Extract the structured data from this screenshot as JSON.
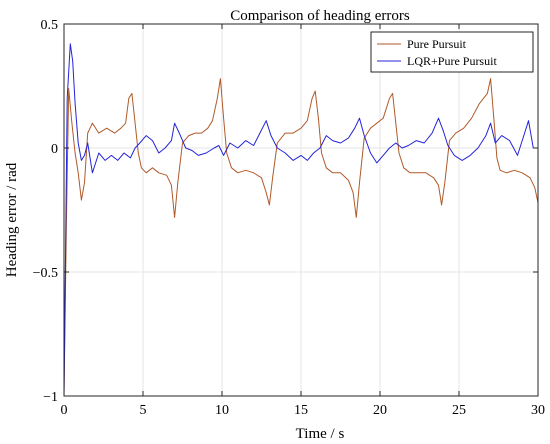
{
  "chart_data": {
    "type": "line",
    "title": "Comparison of heading errors",
    "xlabel": "Time / s",
    "ylabel": "Heading error / rad",
    "xlim": [
      0,
      30
    ],
    "ylim": [
      -1,
      0.5
    ],
    "xticks": [
      0,
      5,
      10,
      15,
      20,
      25,
      30
    ],
    "xtick_labels": [
      "0",
      "5",
      "10",
      "15",
      "20",
      "25",
      "30"
    ],
    "yticks": [
      -1,
      -0.5,
      0,
      0.5
    ],
    "ytick_labels": [
      "−1",
      "−0.5",
      "0",
      "0.5"
    ],
    "grid": true,
    "legend_position": "top-right",
    "series": [
      {
        "name": "Pure Pursuit",
        "color": "#b05a2a",
        "x": [
          0,
          0.15,
          0.3,
          0.5,
          0.7,
          0.9,
          1.1,
          1.3,
          1.5,
          1.8,
          2.2,
          2.7,
          3.2,
          3.6,
          3.9,
          4.1,
          4.3,
          4.5,
          4.7,
          4.9,
          5.2,
          5.6,
          6.0,
          6.5,
          6.8,
          7.0,
          7.2,
          7.5,
          7.9,
          8.3,
          8.7,
          9.1,
          9.4,
          9.7,
          9.9,
          10.1,
          10.3,
          10.6,
          11.0,
          11.5,
          12.0,
          12.5,
          12.8,
          13.0,
          13.2,
          13.5,
          14.0,
          14.5,
          15.0,
          15.4,
          15.7,
          15.9,
          16.1,
          16.3,
          16.6,
          17.0,
          17.5,
          18.0,
          18.3,
          18.5,
          18.7,
          19.0,
          19.4,
          19.8,
          20.2,
          20.6,
          20.8,
          21.0,
          21.2,
          21.5,
          21.9,
          22.4,
          22.9,
          23.4,
          23.7,
          23.9,
          24.1,
          24.4,
          24.8,
          25.3,
          25.8,
          26.3,
          26.8,
          27.0,
          27.2,
          27.4,
          27.6,
          28.0,
          28.5,
          29.0,
          29.5,
          29.8,
          30.0
        ],
        "y": [
          -1.0,
          -0.3,
          0.24,
          0.1,
          -0.02,
          -0.1,
          -0.21,
          -0.14,
          0.06,
          0.1,
          0.06,
          0.08,
          0.06,
          0.08,
          0.1,
          0.2,
          0.22,
          0.1,
          -0.02,
          -0.08,
          -0.1,
          -0.08,
          -0.1,
          -0.11,
          -0.15,
          -0.28,
          -0.14,
          0.02,
          0.05,
          0.06,
          0.06,
          0.08,
          0.11,
          0.2,
          0.28,
          0.12,
          -0.02,
          -0.08,
          -0.1,
          -0.09,
          -0.1,
          -0.12,
          -0.18,
          -0.23,
          -0.12,
          0.02,
          0.06,
          0.06,
          0.08,
          0.11,
          0.2,
          0.23,
          0.12,
          -0.02,
          -0.08,
          -0.1,
          -0.1,
          -0.13,
          -0.18,
          -0.28,
          -0.14,
          0.04,
          0.08,
          0.1,
          0.12,
          0.2,
          0.22,
          0.1,
          -0.02,
          -0.08,
          -0.1,
          -0.1,
          -0.1,
          -0.12,
          -0.15,
          -0.23,
          -0.14,
          0.03,
          0.06,
          0.08,
          0.12,
          0.18,
          0.22,
          0.28,
          0.12,
          -0.04,
          -0.09,
          -0.1,
          -0.09,
          -0.1,
          -0.12,
          -0.16,
          -0.22
        ]
      },
      {
        "name": "LQR+Pure Pursuit",
        "color": "#2424d8",
        "x": [
          0,
          0.2,
          0.4,
          0.55,
          0.7,
          0.9,
          1.1,
          1.3,
          1.5,
          1.8,
          2.2,
          2.6,
          3.0,
          3.4,
          3.8,
          4.2,
          4.5,
          4.8,
          5.2,
          5.6,
          6.0,
          6.4,
          6.8,
          7.0,
          7.3,
          7.7,
          8.1,
          8.5,
          9.0,
          9.5,
          9.8,
          10.1,
          10.5,
          11.0,
          11.5,
          12.0,
          12.4,
          12.8,
          13.1,
          13.5,
          14.0,
          14.5,
          15.0,
          15.4,
          15.8,
          16.2,
          16.6,
          17.0,
          17.5,
          18.0,
          18.4,
          18.7,
          19.0,
          19.4,
          19.8,
          20.2,
          20.6,
          21.0,
          21.4,
          21.8,
          22.3,
          22.8,
          23.3,
          23.7,
          24.0,
          24.3,
          24.7,
          25.2,
          25.7,
          26.2,
          26.7,
          27.0,
          27.3,
          27.7,
          28.2,
          28.7,
          29.1,
          29.4,
          29.7,
          30.0
        ],
        "y": [
          -1.0,
          0.2,
          0.42,
          0.35,
          0.18,
          0.02,
          -0.05,
          -0.03,
          0.02,
          -0.1,
          -0.02,
          -0.05,
          -0.03,
          -0.05,
          -0.02,
          -0.04,
          0.0,
          0.02,
          0.05,
          0.03,
          -0.02,
          0.0,
          0.03,
          0.1,
          0.06,
          0.0,
          -0.01,
          -0.03,
          -0.02,
          0.0,
          0.01,
          -0.03,
          0.02,
          0.0,
          0.03,
          0.01,
          0.06,
          0.11,
          0.05,
          0.0,
          -0.02,
          -0.05,
          -0.03,
          -0.05,
          -0.02,
          0.0,
          0.05,
          0.03,
          0.02,
          0.04,
          0.08,
          0.12,
          0.05,
          -0.02,
          -0.06,
          -0.03,
          0.0,
          0.02,
          0.0,
          0.01,
          0.03,
          0.02,
          0.06,
          0.12,
          0.07,
          0.01,
          -0.03,
          -0.05,
          -0.03,
          0.0,
          0.05,
          0.1,
          0.02,
          0.05,
          0.03,
          -0.03,
          0.05,
          0.11,
          0.0,
          0.0
        ]
      }
    ]
  }
}
